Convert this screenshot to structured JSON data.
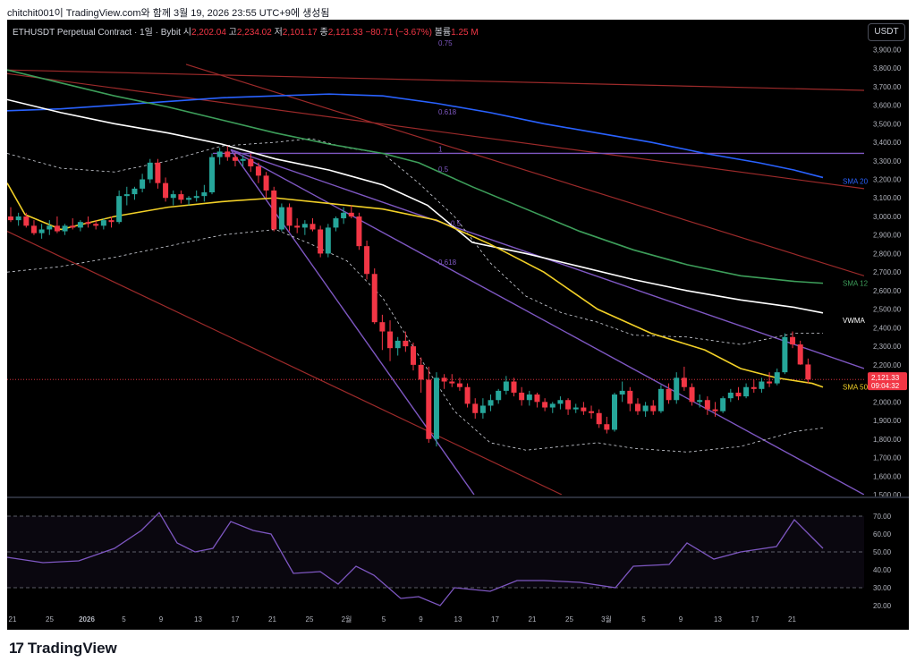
{
  "header": {
    "caption": "chitchit001이 TradingView.com와 함께 3월 19, 2026 23:55 UTC+9에 생성됨"
  },
  "legend": {
    "symbol": "ETHUSDT Perpetual Contract · 1일 · Bybit",
    "open_label": "시",
    "open": "2,202.04",
    "high_label": "고",
    "high": "2,234.02",
    "low_label": "저",
    "low": "2,101.17",
    "close_label": "종",
    "close": "2,121.33",
    "change": "−80.71 (−3.67%)",
    "volume_label": "볼륨",
    "volume": "1.25 M"
  },
  "currency_button": "USDT",
  "price_tag": {
    "value": "2,121.33",
    "countdown": "09:04:32"
  },
  "fib_labels": [
    "0.75",
    "0.618",
    "1",
    "0.5",
    "0.618",
    "0.5"
  ],
  "line_labels": {
    "sma200": "SMA 20",
    "sma120": "SMA 12",
    "vwma": "VWMA",
    "sma50": "SMA 50"
  },
  "brand": "TradingView",
  "colors": {
    "up": "#26a69a",
    "down": "#f23645",
    "sma50": "#f2d027",
    "vwma": "#ffffff",
    "sma120": "#3d9e5a",
    "sma200": "#2962ff",
    "fib": "#7e57c2",
    "channel": "#9c2a2a"
  },
  "chart_data": {
    "type": "candlestick",
    "price_axis": {
      "min": 1500,
      "max": 3950,
      "ticks": [
        "3,900.00",
        "3,800.00",
        "3,700.00",
        "3,600.00",
        "3,500.00",
        "3,400.00",
        "3,300.00",
        "3,200.00",
        "3,100.00",
        "3,000.00",
        "2,900.00",
        "2,800.00",
        "2,700.00",
        "2,600.00",
        "2,500.00",
        "2,400.00",
        "2,300.00",
        "2,200.00",
        "2,100.00",
        "2,000.00",
        "1,900.00",
        "1,800.00",
        "1,700.00",
        "1,600.00",
        "1,500.00"
      ]
    },
    "time_axis": [
      "21",
      "25",
      "2026",
      "5",
      "9",
      "13",
      "17",
      "21",
      "25",
      "2월",
      "5",
      "9",
      "13",
      "17",
      "21",
      "25",
      "3월",
      "5",
      "9",
      "13",
      "17",
      "21"
    ],
    "candles": [
      [
        3000,
        3050,
        2970,
        2980
      ],
      [
        2980,
        3020,
        2950,
        3000
      ],
      [
        3000,
        3020,
        2940,
        2950
      ],
      [
        2950,
        2980,
        2900,
        2910
      ],
      [
        2910,
        2960,
        2880,
        2930
      ],
      [
        2930,
        2980,
        2900,
        2950
      ],
      [
        2950,
        3000,
        2910,
        2920
      ],
      [
        2920,
        2960,
        2900,
        2950
      ],
      [
        2950,
        2990,
        2930,
        2940
      ],
      [
        2940,
        2980,
        2920,
        2970
      ],
      [
        2970,
        3000,
        2940,
        2960
      ],
      [
        2960,
        2980,
        2930,
        2950
      ],
      [
        2950,
        2990,
        2930,
        2980
      ],
      [
        2980,
        3000,
        2940,
        2970
      ],
      [
        2970,
        3140,
        2960,
        3110
      ],
      [
        3110,
        3160,
        3060,
        3120
      ],
      [
        3120,
        3160,
        3090,
        3150
      ],
      [
        3150,
        3230,
        3130,
        3200
      ],
      [
        3200,
        3310,
        3180,
        3290
      ],
      [
        3290,
        3310,
        3150,
        3180
      ],
      [
        3180,
        3210,
        3080,
        3100
      ],
      [
        3100,
        3140,
        3060,
        3120
      ],
      [
        3120,
        3140,
        3070,
        3090
      ],
      [
        3090,
        3110,
        3060,
        3100
      ],
      [
        3100,
        3140,
        3080,
        3110
      ],
      [
        3110,
        3170,
        3080,
        3130
      ],
      [
        3130,
        3340,
        3120,
        3320
      ],
      [
        3320,
        3370,
        3280,
        3350
      ],
      [
        3350,
        3380,
        3300,
        3320
      ],
      [
        3320,
        3340,
        3270,
        3300
      ],
      [
        3300,
        3330,
        3270,
        3310
      ],
      [
        3310,
        3340,
        3240,
        3270
      ],
      [
        3270,
        3290,
        3180,
        3220
      ],
      [
        3220,
        3240,
        3100,
        3140
      ],
      [
        3140,
        3160,
        2920,
        2930
      ],
      [
        2930,
        3070,
        2920,
        3050
      ],
      [
        3050,
        3070,
        2920,
        2950
      ],
      [
        2950,
        2990,
        2910,
        2940
      ],
      [
        2940,
        2980,
        2900,
        2960
      ],
      [
        2960,
        2990,
        2920,
        2930
      ],
      [
        2930,
        2950,
        2780,
        2800
      ],
      [
        2800,
        2960,
        2780,
        2940
      ],
      [
        2940,
        3000,
        2920,
        2990
      ],
      [
        2990,
        3050,
        2960,
        3020
      ],
      [
        3020,
        3060,
        2990,
        3000
      ],
      [
        3000,
        3020,
        2820,
        2840
      ],
      [
        2840,
        2870,
        2660,
        2690
      ],
      [
        2690,
        2720,
        2420,
        2430
      ],
      [
        2430,
        2470,
        2280,
        2380
      ],
      [
        2380,
        2440,
        2220,
        2290
      ],
      [
        2290,
        2350,
        2250,
        2330
      ],
      [
        2330,
        2380,
        2270,
        2300
      ],
      [
        2300,
        2320,
        2170,
        2200
      ],
      [
        2200,
        2240,
        2050,
        2120
      ],
      [
        2120,
        2190,
        1780,
        1800
      ],
      [
        1800,
        2160,
        1760,
        2130
      ],
      [
        2130,
        2150,
        2070,
        2110
      ],
      [
        2110,
        2150,
        2080,
        2100
      ],
      [
        2100,
        2130,
        2060,
        2080
      ],
      [
        2080,
        2100,
        1970,
        1990
      ],
      [
        1990,
        2020,
        1910,
        1940
      ],
      [
        1940,
        2020,
        1910,
        1980
      ],
      [
        1980,
        2040,
        1950,
        2010
      ],
      [
        2010,
        2070,
        1990,
        2060
      ],
      [
        2060,
        2140,
        2040,
        2110
      ],
      [
        2110,
        2130,
        2030,
        2050
      ],
      [
        2050,
        2080,
        1980,
        2010
      ],
      [
        2010,
        2060,
        1980,
        2040
      ],
      [
        2040,
        2050,
        1970,
        2000
      ],
      [
        2000,
        2020,
        1950,
        1970
      ],
      [
        1970,
        2000,
        1940,
        1990
      ],
      [
        1990,
        2030,
        1960,
        2010
      ],
      [
        2010,
        2020,
        1930,
        1960
      ],
      [
        1960,
        1990,
        1940,
        1970
      ],
      [
        1970,
        2000,
        1930,
        1950
      ],
      [
        1950,
        1980,
        1910,
        1940
      ],
      [
        1940,
        1960,
        1860,
        1880
      ],
      [
        1880,
        1920,
        1830,
        1850
      ],
      [
        1850,
        2050,
        1840,
        2040
      ],
      [
        2040,
        2110,
        2000,
        2060
      ],
      [
        2060,
        2080,
        1950,
        1990
      ],
      [
        1990,
        2020,
        1930,
        1950
      ],
      [
        1950,
        2000,
        1920,
        1980
      ],
      [
        1980,
        2010,
        1930,
        1950
      ],
      [
        1950,
        2090,
        1940,
        2070
      ],
      [
        2070,
        2100,
        1990,
        2010
      ],
      [
        2010,
        2160,
        1990,
        2130
      ],
      [
        2130,
        2190,
        2060,
        2080
      ],
      [
        2080,
        2100,
        1980,
        2000
      ],
      [
        2000,
        2040,
        1970,
        2010
      ],
      [
        2010,
        2030,
        1930,
        1960
      ],
      [
        1960,
        2000,
        1920,
        1950
      ],
      [
        1950,
        2030,
        1940,
        2020
      ],
      [
        2020,
        2070,
        2000,
        2050
      ],
      [
        2050,
        2080,
        2010,
        2030
      ],
      [
        2030,
        2100,
        2020,
        2080
      ],
      [
        2080,
        2120,
        2050,
        2070
      ],
      [
        2070,
        2130,
        2050,
        2110
      ],
      [
        2110,
        2160,
        2080,
        2100
      ],
      [
        2100,
        2180,
        2090,
        2160
      ],
      [
        2160,
        2370,
        2150,
        2350
      ],
      [
        2350,
        2380,
        2290,
        2310
      ],
      [
        2310,
        2330,
        2200,
        2202
      ],
      [
        2202,
        2234,
        2101,
        2121
      ]
    ],
    "sma50": [
      [
        0,
        3180
      ],
      [
        20,
        3010
      ],
      [
        60,
        2930
      ],
      [
        120,
        3000
      ],
      [
        180,
        3050
      ],
      [
        240,
        3080
      ],
      [
        300,
        3100
      ],
      [
        360,
        3070
      ],
      [
        420,
        3040
      ],
      [
        480,
        2980
      ],
      [
        540,
        2850
      ],
      [
        600,
        2700
      ],
      [
        660,
        2500
      ],
      [
        720,
        2370
      ],
      [
        780,
        2280
      ],
      [
        820,
        2180
      ],
      [
        860,
        2130
      ],
      [
        900,
        2100
      ],
      [
        912,
        2080
      ]
    ],
    "vwma": [
      [
        0,
        3630
      ],
      [
        60,
        3560
      ],
      [
        120,
        3500
      ],
      [
        180,
        3450
      ],
      [
        240,
        3390
      ],
      [
        300,
        3310
      ],
      [
        360,
        3250
      ],
      [
        420,
        3170
      ],
      [
        470,
        3060
      ],
      [
        520,
        2860
      ],
      [
        580,
        2800
      ],
      [
        640,
        2730
      ],
      [
        700,
        2660
      ],
      [
        760,
        2600
      ],
      [
        820,
        2550
      ],
      [
        880,
        2510
      ],
      [
        912,
        2480
      ]
    ],
    "sma120": [
      [
        0,
        3790
      ],
      [
        60,
        3720
      ],
      [
        120,
        3650
      ],
      [
        180,
        3590
      ],
      [
        240,
        3520
      ],
      [
        300,
        3450
      ],
      [
        360,
        3390
      ],
      [
        420,
        3340
      ],
      [
        460,
        3290
      ],
      [
        520,
        3160
      ],
      [
        580,
        3040
      ],
      [
        640,
        2920
      ],
      [
        700,
        2820
      ],
      [
        760,
        2740
      ],
      [
        820,
        2680
      ],
      [
        880,
        2650
      ],
      [
        912,
        2640
      ]
    ],
    "sma200": [
      [
        0,
        3570
      ],
      [
        60,
        3580
      ],
      [
        120,
        3600
      ],
      [
        180,
        3620
      ],
      [
        240,
        3640
      ],
      [
        300,
        3650
      ],
      [
        360,
        3660
      ],
      [
        420,
        3650
      ],
      [
        480,
        3610
      ],
      [
        540,
        3560
      ],
      [
        600,
        3500
      ],
      [
        660,
        3450
      ],
      [
        720,
        3400
      ],
      [
        780,
        3340
      ],
      [
        840,
        3290
      ],
      [
        880,
        3250
      ],
      [
        912,
        3210
      ]
    ],
    "bb_upper": [
      [
        0,
        3340
      ],
      [
        60,
        3260
      ],
      [
        120,
        3240
      ],
      [
        180,
        3300
      ],
      [
        240,
        3380
      ],
      [
        300,
        3400
      ],
      [
        340,
        3420
      ],
      [
        380,
        3370
      ],
      [
        420,
        3340
      ],
      [
        460,
        3180
      ],
      [
        500,
        3000
      ],
      [
        540,
        2750
      ],
      [
        580,
        2570
      ],
      [
        620,
        2480
      ],
      [
        660,
        2430
      ],
      [
        700,
        2360
      ],
      [
        760,
        2350
      ],
      [
        820,
        2310
      ],
      [
        880,
        2370
      ],
      [
        912,
        2370
      ]
    ],
    "bb_lower": [
      [
        0,
        2700
      ],
      [
        60,
        2730
      ],
      [
        120,
        2780
      ],
      [
        180,
        2840
      ],
      [
        240,
        2900
      ],
      [
        300,
        2930
      ],
      [
        340,
        2850
      ],
      [
        380,
        2760
      ],
      [
        420,
        2560
      ],
      [
        460,
        2250
      ],
      [
        500,
        1950
      ],
      [
        540,
        1780
      ],
      [
        580,
        1740
      ],
      [
        620,
        1760
      ],
      [
        660,
        1780
      ],
      [
        700,
        1750
      ],
      [
        760,
        1730
      ],
      [
        820,
        1760
      ],
      [
        880,
        1840
      ],
      [
        912,
        1860
      ]
    ],
    "rsi": {
      "range": [
        20,
        75
      ],
      "levels": [
        70,
        50,
        30
      ],
      "ticks": [
        "70.00",
        "60.00",
        "50.00",
        "40.00",
        "30.00",
        "20.00"
      ],
      "values": [
        [
          0,
          47
        ],
        [
          40,
          44
        ],
        [
          80,
          45
        ],
        [
          120,
          52
        ],
        [
          150,
          62
        ],
        [
          170,
          72
        ],
        [
          190,
          55
        ],
        [
          210,
          50
        ],
        [
          230,
          52
        ],
        [
          250,
          67
        ],
        [
          275,
          62
        ],
        [
          295,
          60
        ],
        [
          320,
          38
        ],
        [
          350,
          39
        ],
        [
          370,
          32
        ],
        [
          390,
          42
        ],
        [
          410,
          37
        ],
        [
          440,
          24
        ],
        [
          460,
          25
        ],
        [
          484,
          20
        ],
        [
          500,
          30
        ],
        [
          540,
          28
        ],
        [
          570,
          34
        ],
        [
          600,
          34
        ],
        [
          640,
          33
        ],
        [
          680,
          30
        ],
        [
          700,
          42
        ],
        [
          740,
          43
        ],
        [
          760,
          55
        ],
        [
          790,
          46
        ],
        [
          820,
          50
        ],
        [
          860,
          53
        ],
        [
          880,
          68
        ],
        [
          900,
          58
        ],
        [
          912,
          52
        ]
      ]
    }
  }
}
